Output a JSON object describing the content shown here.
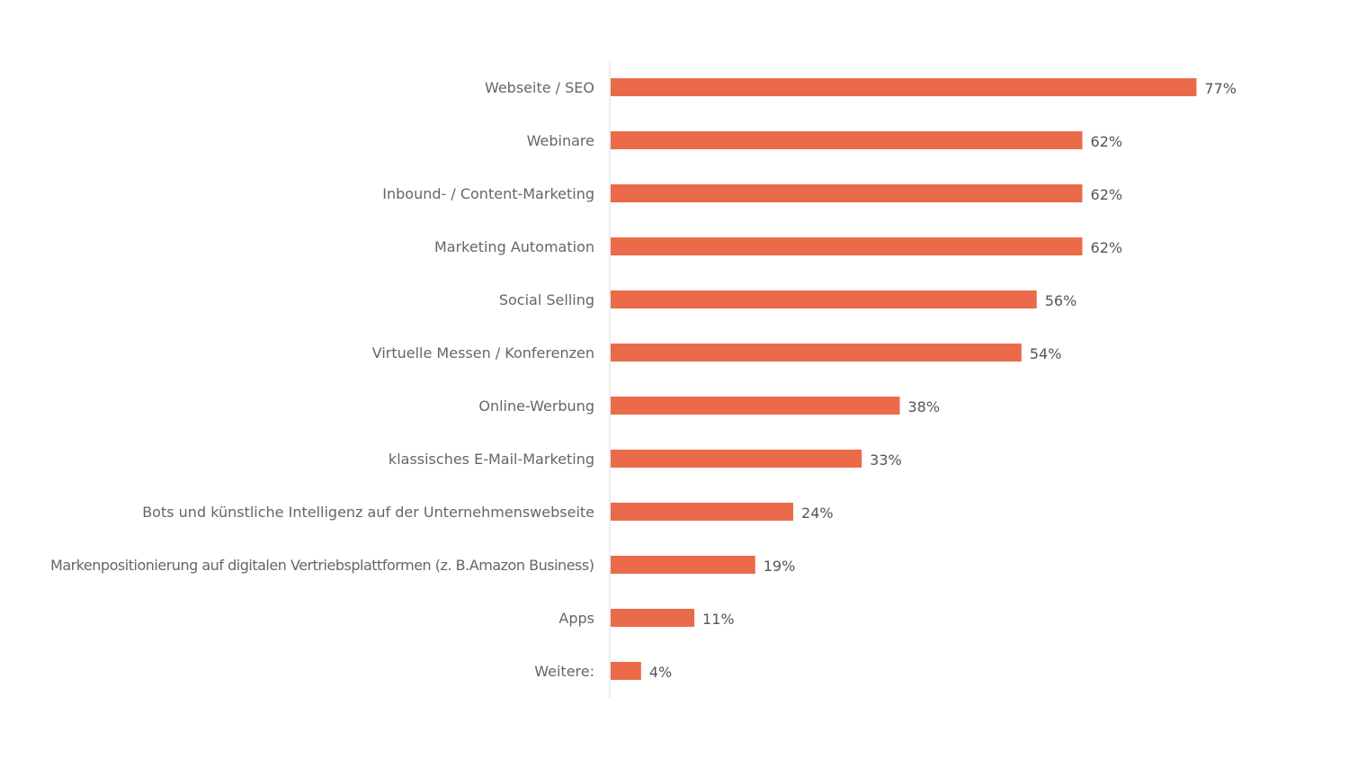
{
  "chart_data": {
    "type": "bar",
    "orientation": "horizontal",
    "title": "",
    "xlabel": "",
    "ylabel": "",
    "xlim": [
      0,
      100
    ],
    "grid": false,
    "bar_color": "#EB6A4A",
    "categories": [
      "Webseite / SEO",
      "Webinare",
      "Inbound- / Content-Marketing",
      "Marketing Automation",
      "Social Selling",
      "Virtuelle Messen / Konferenzen",
      "Online-Werbung",
      "klassisches E-Mail-Marketing",
      "Bots und künstliche Intelligenz auf der Unternehmenswebseite",
      "Markenpositionierung auf digitalen Vertriebsplattformen (z. B.Amazon Business)",
      "Apps",
      "Weitere:"
    ],
    "values": [
      77,
      62,
      62,
      62,
      56,
      54,
      38,
      33,
      24,
      19,
      11,
      4
    ],
    "value_labels": [
      "77%",
      "62%",
      "62%",
      "62%",
      "56%",
      "54%",
      "38%",
      "33%",
      "24%",
      "19%",
      "11%",
      "4%"
    ]
  }
}
